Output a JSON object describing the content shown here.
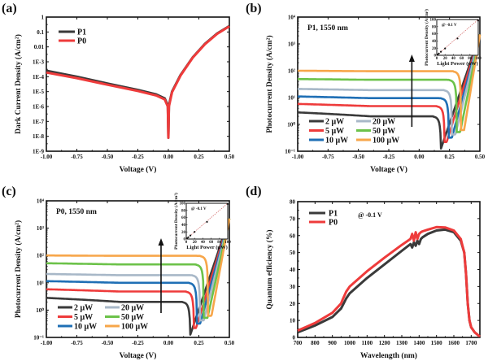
{
  "figure": {
    "panels": [
      "(a)",
      "(b)",
      "(c)",
      "(d)"
    ]
  },
  "chart_data": [
    {
      "id": "a",
      "panel_label": "(a)",
      "type": "line",
      "title": "",
      "xlabel": "Voltage (V)",
      "ylabel": "Dark Current Density (A/cm²)",
      "yscale": "log",
      "xlim": [
        -1.0,
        0.5
      ],
      "ylim_exp": [
        -9,
        0
      ],
      "xticks": [
        "-1.00",
        "-0.75",
        "-0.50",
        "-0.25",
        "0.00",
        "0.25",
        "0.50"
      ],
      "yticks": [
        "1E-9",
        "1E-8",
        "1E-7",
        "1E-6",
        "1E-5",
        "1E-4",
        "1E-3",
        "0.01",
        "0.1",
        "1"
      ],
      "legend_position": "top-left",
      "series": [
        {
          "name": "P1",
          "color": "#3a3a3a",
          "x": [
            -1.0,
            -0.75,
            -0.5,
            -0.25,
            -0.1,
            -0.03,
            -0.005,
            0.0,
            0.005,
            0.03,
            0.1,
            0.2,
            0.3,
            0.4,
            0.5
          ],
          "y": [
            0.00025,
            0.0001,
            3.5e-05,
            1.3e-05,
            6.5e-06,
            3.5e-06,
            1.2e-06,
            8e-09,
            1.2e-06,
            1e-05,
            0.00013,
            0.002,
            0.016,
            0.08,
            0.25
          ]
        },
        {
          "name": "P0",
          "color": "#ee3b3b",
          "x": [
            -1.0,
            -0.75,
            -0.5,
            -0.25,
            -0.1,
            -0.03,
            -0.005,
            0.0,
            0.005,
            0.03,
            0.1,
            0.2,
            0.3,
            0.4,
            0.5
          ],
          "y": [
            0.00019,
            8e-05,
            2.9e-05,
            1.1e-05,
            5.5e-06,
            3e-06,
            1e-06,
            8e-09,
            1e-06,
            9e-06,
            0.00012,
            0.0019,
            0.015,
            0.075,
            0.24
          ]
        }
      ]
    },
    {
      "id": "b",
      "panel_label": "(b)",
      "type": "line",
      "annotation": "P1, 1550 nm",
      "xlabel": "Voltage (V)",
      "ylabel": "Photocurrent Density (A/cm²)",
      "yscale": "log",
      "xlim": [
        -1.0,
        0.5
      ],
      "ylim_exp": [
        -1,
        4
      ],
      "xticks": [
        "-1.00",
        "-0.75",
        "-0.50",
        "-0.25",
        "0.00",
        "0.25",
        "0.50"
      ],
      "yticks": [
        "10⁻¹",
        "10⁰",
        "10¹",
        "10²",
        "10³",
        "10⁴"
      ],
      "legend_position": "bottom-left",
      "arrow": "increasing light power",
      "series": [
        {
          "name": "2 μW",
          "color": "#3a3a3a",
          "plateau": 2.0,
          "left": 2.8,
          "v0": 0.18
        },
        {
          "name": "5 μW",
          "color": "#ee3b3b",
          "plateau": 4.8,
          "left": 5.8,
          "v0": 0.21
        },
        {
          "name": "10 μW",
          "color": "#1f6fb5",
          "plateau": 9.5,
          "left": 11.0,
          "v0": 0.245
        },
        {
          "name": "20 μW",
          "color": "#a8b8c8",
          "plateau": 19.0,
          "left": 21.0,
          "v0": 0.27
        },
        {
          "name": "50 μW",
          "color": "#6cc24a",
          "plateau": 46.0,
          "left": 49.0,
          "v0": 0.31
        },
        {
          "name": "100 μW",
          "color": "#f7a64a",
          "plateau": 96.0,
          "left": 100.0,
          "v0": 0.345
        }
      ],
      "inset": {
        "annotation": "@ -0.1 V",
        "xlabel": "Light Power (μW)",
        "ylabel": "Photocurrent Density (A/cm²)",
        "xlim": [
          0,
          100
        ],
        "ylim": [
          0,
          100
        ],
        "xticks": [
          "0",
          "20",
          "40",
          "60",
          "80",
          "100"
        ],
        "yticks": [
          "0",
          "20",
          "40",
          "60",
          "80",
          "100"
        ],
        "points_x": [
          2,
          5,
          10,
          20,
          50,
          100
        ],
        "points_y": [
          2,
          5,
          10,
          19,
          47,
          97
        ]
      }
    },
    {
      "id": "c",
      "panel_label": "(c)",
      "type": "line",
      "annotation": "P0, 1550 nm",
      "xlabel": "Voltage (V)",
      "ylabel": "Photocurrent Density (A/cm²)",
      "yscale": "log",
      "xlim": [
        -1.0,
        0.5
      ],
      "ylim_exp": [
        -1,
        4
      ],
      "xticks": [
        "-1.00",
        "-0.75",
        "-0.50",
        "-0.25",
        "0.00",
        "0.25",
        "0.50"
      ],
      "yticks": [
        "10⁻¹",
        "10⁰",
        "10¹",
        "10²",
        "10³",
        "10⁴"
      ],
      "legend_position": "bottom-left",
      "arrow": "increasing light power",
      "series": [
        {
          "name": "2 μW",
          "color": "#3a3a3a",
          "plateau": 2.0,
          "left": 2.8,
          "v0": 0.18
        },
        {
          "name": "5 μW",
          "color": "#ee3b3b",
          "plateau": 4.8,
          "left": 5.8,
          "v0": 0.21
        },
        {
          "name": "10 μW",
          "color": "#1f6fb5",
          "plateau": 10.0,
          "left": 11.5,
          "v0": 0.235
        },
        {
          "name": "20 μW",
          "color": "#a8b8c8",
          "plateau": 19.0,
          "left": 21.0,
          "v0": 0.26
        },
        {
          "name": "50 μW",
          "color": "#6cc24a",
          "plateau": 47.0,
          "left": 52.0,
          "v0": 0.29
        },
        {
          "name": "100 μW",
          "color": "#f7a64a",
          "plateau": 97.0,
          "left": 100.0,
          "v0": 0.325
        }
      ],
      "inset": {
        "annotation": "@ -0.1 V",
        "xlabel": "Light Power (μW)",
        "ylabel": "Photocurrent Density (A/cm²)",
        "xlim": [
          0,
          100
        ],
        "ylim": [
          0,
          100
        ],
        "xticks": [
          "0",
          "20",
          "40",
          "60",
          "80",
          "100"
        ],
        "yticks": [
          "0",
          "20",
          "40",
          "60",
          "80",
          "100"
        ],
        "points_x": [
          2,
          5,
          10,
          20,
          50,
          100
        ],
        "points_y": [
          2,
          5,
          10,
          20,
          48,
          98
        ]
      }
    },
    {
      "id": "d",
      "panel_label": "(d)",
      "type": "line",
      "annotation": "@ -0.1 V",
      "xlabel": "Wavelength (nm)",
      "ylabel": "Quantum efficiency (%)",
      "xlim": [
        700,
        1750
      ],
      "ylim": [
        0,
        80
      ],
      "xticks": [
        "700",
        "800",
        "900",
        "1000",
        "1100",
        "1200",
        "1300",
        "1400",
        "1500",
        "1600",
        "1700"
      ],
      "yticks": [
        "0",
        "10",
        "20",
        "30",
        "40",
        "50",
        "60",
        "70",
        "80"
      ],
      "legend_position": "top-left",
      "series": [
        {
          "name": "P1",
          "color": "#3a3a3a",
          "x": [
            700,
            800,
            900,
            950,
            960,
            980,
            1000,
            1100,
            1200,
            1300,
            1350,
            1360,
            1370,
            1380,
            1390,
            1400,
            1410,
            1420,
            1450,
            1500,
            1550,
            1600,
            1640,
            1660,
            1670,
            1680,
            1690,
            1700,
            1720,
            1750
          ],
          "y": [
            3,
            7,
            12,
            17,
            19,
            23,
            26,
            35,
            43,
            51,
            55,
            53,
            56,
            54,
            57,
            55,
            58,
            59,
            61,
            63,
            63.5,
            62,
            57,
            50,
            38,
            20,
            10,
            6,
            3,
            0.5
          ]
        },
        {
          "name": "P0",
          "color": "#ee3b3b",
          "x": [
            700,
            800,
            900,
            950,
            960,
            980,
            1000,
            1100,
            1200,
            1300,
            1350,
            1360,
            1370,
            1380,
            1390,
            1400,
            1410,
            1420,
            1450,
            1500,
            1550,
            1600,
            1640,
            1660,
            1670,
            1680,
            1690,
            1700,
            1720,
            1750
          ],
          "y": [
            4,
            8.5,
            14.5,
            20,
            22.5,
            27,
            30,
            39,
            47,
            54.5,
            58,
            61,
            57,
            62,
            58,
            61,
            62,
            62.5,
            63.5,
            65,
            64.8,
            63,
            58,
            50,
            38,
            20,
            10,
            6,
            3,
            0.5
          ]
        }
      ]
    }
  ]
}
